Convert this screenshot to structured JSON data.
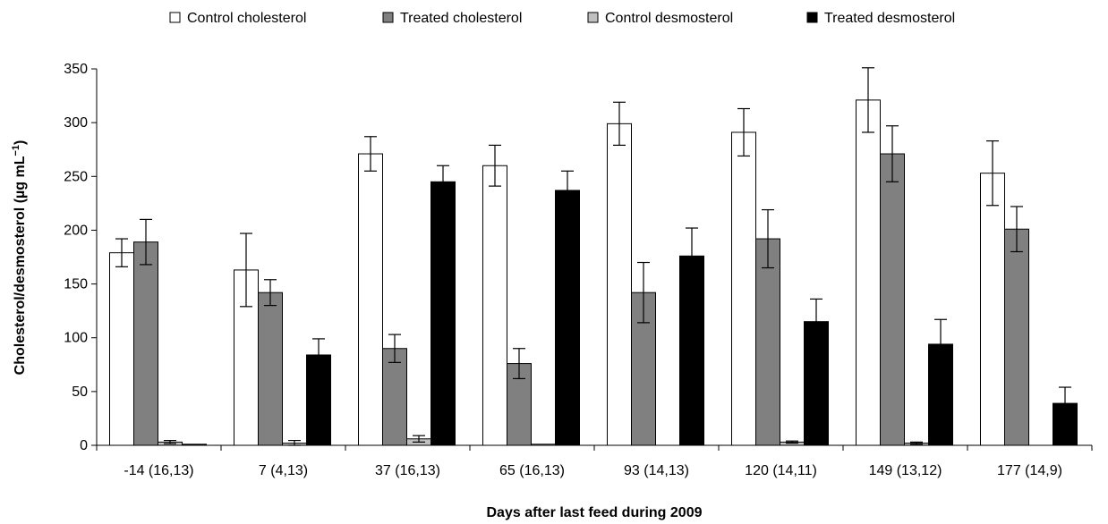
{
  "chart_data": {
    "type": "bar",
    "xlabel": "Days after last feed during 2009",
    "ylabel_main": "Cholesterol/desmosterol (µg mL",
    "ylabel_sup": "−1",
    "ylabel_close": ")",
    "ylim": [
      0,
      350
    ],
    "yticks": [
      0,
      50,
      100,
      150,
      200,
      250,
      300,
      350
    ],
    "legend_position": "top",
    "grid": false,
    "categories": [
      "-14 (16,13)",
      "7 (4,13)",
      "37 (16,13)",
      "65 (16,13)",
      "93 (14,13)",
      "120 (14,11)",
      "149 (13,12)",
      "177 (14,9)"
    ],
    "series": [
      {
        "name": "Control cholesterol",
        "color": "#ffffff",
        "values": [
          179,
          163,
          271,
          260,
          299,
          291,
          321,
          253
        ],
        "errors": [
          13,
          34,
          16,
          19,
          20,
          22,
          30,
          30
        ]
      },
      {
        "name": "Treated cholesterol",
        "color": "#808080",
        "values": [
          189,
          142,
          90,
          76,
          142,
          192,
          271,
          201
        ],
        "errors": [
          21,
          12,
          13,
          14,
          28,
          27,
          26,
          21
        ]
      },
      {
        "name": "Control desmosterol",
        "color": "#c0c0c0",
        "values": [
          3,
          2,
          6,
          1,
          0,
          3,
          2,
          0
        ],
        "errors": [
          1.5,
          2.5,
          3,
          0,
          0,
          1,
          1,
          0
        ]
      },
      {
        "name": "Treated desmosterol",
        "color": "#000000",
        "values": [
          1,
          84,
          245,
          237,
          176,
          115,
          94,
          39
        ],
        "errors": [
          0,
          15,
          15,
          18,
          26,
          21,
          23,
          15
        ]
      }
    ]
  }
}
